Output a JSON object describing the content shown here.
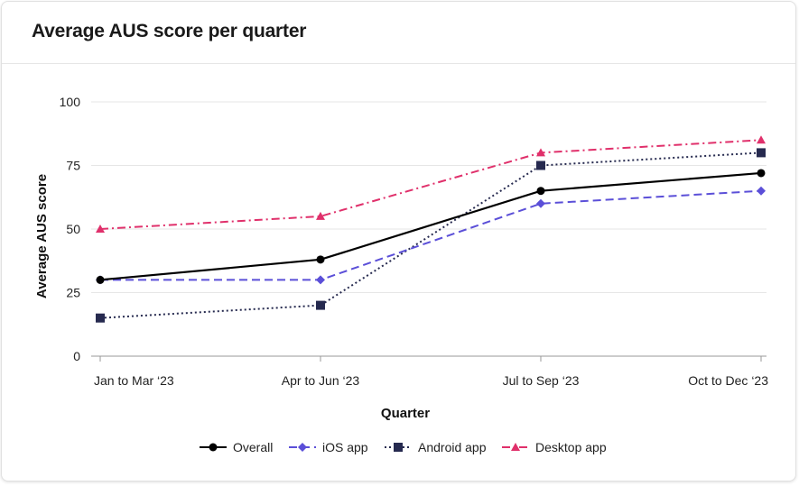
{
  "card": {
    "title": "Average AUS score per quarter"
  },
  "chart_data": {
    "type": "line",
    "categories": [
      "Jan to Mar ‘23",
      "Apr to Jun ‘23",
      "Jul to Sep ‘23",
      "Oct to Dec ‘23"
    ],
    "x_positions": [
      0,
      1,
      2,
      3
    ],
    "xlabel": "Quarter",
    "ylabel": "Average AUS score",
    "ylim": [
      0,
      100
    ],
    "yticks": [
      0,
      25,
      50,
      75,
      100
    ],
    "grid": true,
    "legend_position": "bottom",
    "series": [
      {
        "name": "Overall",
        "values": [
          30,
          38,
          65,
          72
        ],
        "color": "#000000",
        "dash": "solid",
        "marker": "circle"
      },
      {
        "name": "iOS app",
        "values": [
          30,
          30,
          60,
          65
        ],
        "color": "#5b4fd8",
        "dash": "dashed",
        "marker": "diamond"
      },
      {
        "name": "Android app",
        "values": [
          15,
          20,
          75,
          80
        ],
        "color": "#262a4f",
        "dash": "dotted",
        "marker": "square"
      },
      {
        "name": "Desktop app",
        "values": [
          50,
          55,
          80,
          85
        ],
        "color": "#e0306b",
        "dash": "dashdot",
        "marker": "triangle"
      }
    ]
  }
}
